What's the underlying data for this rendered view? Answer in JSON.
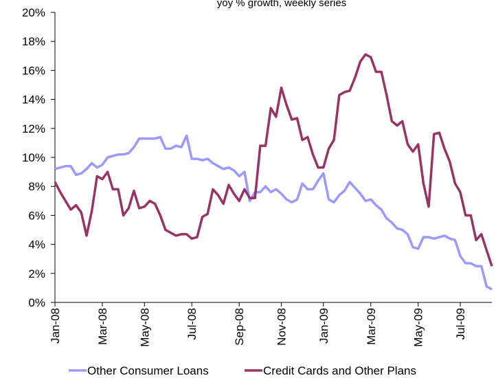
{
  "chart_data": {
    "type": "line",
    "title": "yoy % growth, weekly series",
    "categories": [
      "Jan-08",
      null,
      null,
      null,
      null,
      null,
      null,
      null,
      null,
      "Mar-08",
      null,
      null,
      null,
      null,
      null,
      null,
      null,
      "May-08",
      null,
      null,
      null,
      null,
      null,
      null,
      null,
      null,
      "Jul-08",
      null,
      null,
      null,
      null,
      null,
      null,
      null,
      null,
      "Sep-08",
      null,
      null,
      null,
      null,
      null,
      null,
      null,
      "Nov-08",
      null,
      null,
      null,
      null,
      null,
      null,
      null,
      "Jan-09",
      null,
      null,
      null,
      null,
      null,
      null,
      null,
      null,
      "Mar-09",
      null,
      null,
      null,
      null,
      null,
      null,
      null,
      null,
      "May-09",
      null,
      null,
      null,
      null,
      null,
      null,
      null,
      "Jul-09",
      null,
      null,
      null,
      null,
      null,
      null
    ],
    "series": [
      {
        "name": "Other Consumer Loans",
        "color": "#9999ff",
        "values": [
          9.2,
          9.3,
          9.4,
          9.4,
          8.8,
          8.9,
          9.2,
          9.6,
          9.3,
          9.5,
          10.0,
          10.1,
          10.2,
          10.2,
          10.3,
          10.7,
          11.3,
          11.3,
          11.3,
          11.3,
          11.4,
          10.6,
          10.6,
          10.8,
          10.7,
          11.5,
          9.9,
          9.9,
          9.8,
          9.9,
          9.6,
          9.4,
          9.2,
          9.3,
          9.1,
          8.7,
          9.0,
          7.0,
          7.6,
          7.6,
          8.0,
          7.6,
          7.8,
          7.5,
          7.1,
          6.9,
          7.1,
          8.2,
          7.8,
          7.8,
          8.4,
          8.9,
          7.1,
          6.9,
          7.4,
          7.7,
          8.3,
          7.9,
          7.5,
          7.0,
          7.1,
          6.7,
          6.4,
          5.8,
          5.5,
          5.1,
          5.0,
          4.7,
          3.8,
          3.7,
          4.5,
          4.5,
          4.4,
          4.5,
          4.6,
          4.4,
          4.3,
          3.2,
          2.7,
          2.7,
          2.5,
          2.5,
          1.1,
          0.9
        ]
      },
      {
        "name": "Credit Cards and Other Plans",
        "color": "#993366",
        "values": [
          8.3,
          7.6,
          7.0,
          6.4,
          6.7,
          6.2,
          4.6,
          6.3,
          8.7,
          8.5,
          9.0,
          7.8,
          7.8,
          6.0,
          6.5,
          7.7,
          6.5,
          6.6,
          7.0,
          6.8,
          6.0,
          5.0,
          4.8,
          4.6,
          4.7,
          4.7,
          4.4,
          4.5,
          5.9,
          6.1,
          7.8,
          7.4,
          6.8,
          8.1,
          7.5,
          7.0,
          7.8,
          7.2,
          7.2,
          10.8,
          10.8,
          13.4,
          12.8,
          14.8,
          13.6,
          12.6,
          12.7,
          11.2,
          11.4,
          10.2,
          9.3,
          9.3,
          10.6,
          11.2,
          14.3,
          14.5,
          14.6,
          15.5,
          16.6,
          17.1,
          16.9,
          15.9,
          15.9,
          14.3,
          12.5,
          12.2,
          12.5,
          10.9,
          10.4,
          10.9,
          8.2,
          6.6,
          11.6,
          11.7,
          10.6,
          9.7,
          8.2,
          7.6,
          6.0,
          6.0,
          4.3,
          4.7,
          3.6,
          2.5
        ]
      }
    ],
    "ylim": [
      0,
      20
    ],
    "yticks": [
      {
        "value": 0,
        "label": "0%"
      },
      {
        "value": 2,
        "label": "2%"
      },
      {
        "value": 4,
        "label": "4%"
      },
      {
        "value": 6,
        "label": "6%"
      },
      {
        "value": 8,
        "label": "8%"
      },
      {
        "value": 10,
        "label": "10%"
      },
      {
        "value": 12,
        "label": "12%"
      },
      {
        "value": 14,
        "label": "14%"
      },
      {
        "value": 16,
        "label": "16%"
      },
      {
        "value": 18,
        "label": "18%"
      },
      {
        "value": 20,
        "label": "20%"
      }
    ],
    "grid": false,
    "legend": "bottom"
  }
}
